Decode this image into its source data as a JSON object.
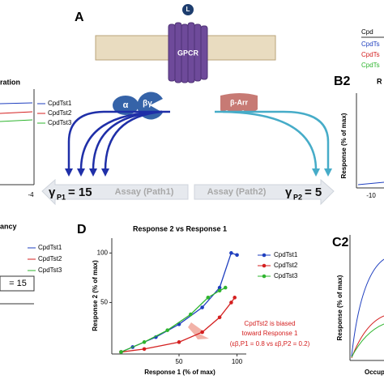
{
  "figure": {
    "panel_a": {
      "label": "A",
      "ligand": "L",
      "receptor": "GPCR",
      "g_alpha": "α",
      "g_beta_gamma": "βγ",
      "arrestin": "β-Arr",
      "assay1": "Assay (Path1)",
      "assay2": "Assay (Path2)",
      "gamma1": {
        "symbol": "γ",
        "sub": "P1",
        "text": "= 15"
      },
      "gamma2": {
        "symbol": "γ",
        "sub": "P2",
        "text": "= 5"
      }
    },
    "panel_b1": {
      "title": "ration",
      "legend": [
        "CpdTst1",
        "CpdTst2",
        "CpdTst3"
      ],
      "tick": "-4"
    },
    "panel_c1": {
      "title": "ancy",
      "legend": [
        "CpdTst1",
        "CpdTst2",
        "CpdTst3"
      ],
      "box": "= 15"
    },
    "panel_b2": {
      "label": "B2",
      "title": "R",
      "ylabel": "Response (% of max)",
      "tick": "-10"
    },
    "legend_top": {
      "header": "Cpd",
      "items": [
        "CpdTs",
        "CpdTs",
        "CpdTs"
      ]
    },
    "panel_c2": {
      "label": "C2",
      "ylabel": "Response (% of max)",
      "xlabel": "Occup"
    },
    "panel_d": {
      "label": "D",
      "annotation": [
        "CpdTst2 is biased",
        "toward Response 1",
        "(εβ,P1 = 0.8 vs εβ,P2 = 0.2)"
      ]
    }
  },
  "chart_data": {
    "type": "scatter",
    "title": "Response 2 vs Response 1",
    "x_label": "Response 1 (% of max)",
    "y_label": "Response 2 (% of max)",
    "xlim": [
      -8,
      108
    ],
    "ylim": [
      -2,
      115
    ],
    "xticks": [
      50,
      100
    ],
    "yticks": [
      50,
      100
    ],
    "series": [
      {
        "name": "CpdTst1",
        "color": "#1f3fbf",
        "x": [
          0,
          10,
          30,
          50,
          70,
          85,
          95,
          100
        ],
        "values": [
          0,
          5,
          15,
          28,
          45,
          65,
          100,
          98
        ]
      },
      {
        "name": "CpdTst2",
        "color": "#d42020",
        "x": [
          0,
          20,
          50,
          70,
          85,
          95,
          98
        ],
        "values": [
          0,
          3,
          10,
          20,
          35,
          50,
          55
        ]
      },
      {
        "name": "CpdTst3",
        "color": "#2fb52f",
        "x": [
          0,
          20,
          40,
          60,
          75,
          85,
          90
        ],
        "values": [
          0,
          10,
          22,
          38,
          55,
          62,
          65
        ]
      }
    ]
  }
}
